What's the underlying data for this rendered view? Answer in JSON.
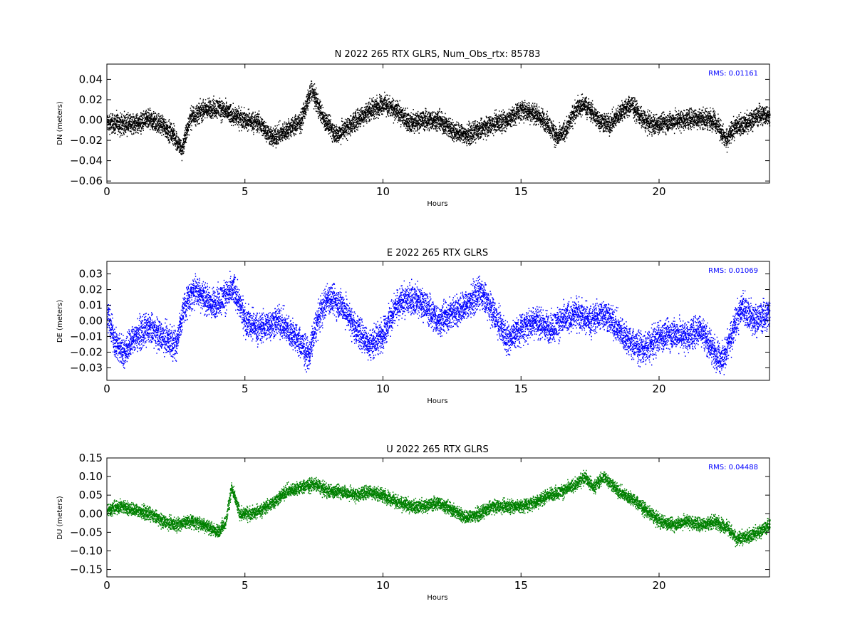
{
  "chart_data": [
    {
      "type": "scatter",
      "title": "N 2022 265 RTX  GLRS, Num_Obs_rtx: 85783",
      "xlabel": "Hours",
      "ylabel": "DN (meters)",
      "rms_label": "RMS:  0.01161",
      "color": "#000000",
      "rms_color": "#0000ff",
      "xlim": [
        0,
        24
      ],
      "ylim": [
        -0.062,
        0.055
      ],
      "xticks": [
        0,
        5,
        10,
        15,
        20
      ],
      "xtick_labels": [
        "0",
        "5",
        "10",
        "15",
        "20"
      ],
      "yticks": [
        -0.06,
        -0.04,
        -0.02,
        0.0,
        0.02,
        0.04
      ],
      "ytick_labels": [
        "−0.06",
        "−0.04",
        "−0.02",
        "0.00",
        "0.02",
        "0.04"
      ],
      "grid": false,
      "noise_half_width": 0.011,
      "envelope": {
        "x": [
          0,
          0.5,
          1,
          1.5,
          2,
          2.4,
          2.7,
          3,
          3.5,
          4,
          4.5,
          5,
          5.5,
          6,
          6.5,
          7,
          7.4,
          7.8,
          8.3,
          8.8,
          9.5,
          10,
          10.5,
          11,
          11.5,
          12,
          12.5,
          13,
          13.5,
          14,
          14.5,
          15,
          15.5,
          16,
          16.3,
          16.6,
          17,
          17.3,
          17.8,
          18.2,
          18.6,
          19,
          19.4,
          19.8,
          20.3,
          21,
          21.5,
          22,
          22.4,
          22.8,
          23.2,
          23.6,
          24
        ],
        "y": [
          -0.003,
          -0.004,
          -0.004,
          0.0,
          -0.005,
          -0.015,
          -0.03,
          0.002,
          0.01,
          0.012,
          0.005,
          0.0,
          -0.003,
          -0.018,
          -0.01,
          -0.002,
          0.03,
          0.003,
          -0.015,
          -0.005,
          0.01,
          0.016,
          0.008,
          -0.003,
          0.0,
          0.0,
          -0.01,
          -0.015,
          -0.01,
          -0.003,
          0.0,
          0.01,
          0.006,
          -0.005,
          -0.018,
          -0.01,
          0.012,
          0.015,
          0.0,
          -0.005,
          0.008,
          0.015,
          0.0,
          -0.005,
          -0.002,
          0.001,
          0.002,
          0.0,
          -0.02,
          -0.005,
          -0.003,
          0.005,
          0.005
        ]
      }
    },
    {
      "type": "scatter",
      "title": "E 2022 265 RTX  GLRS",
      "xlabel": "Hours",
      "ylabel": "DE (meters)",
      "rms_label": "RMS:  0.01069",
      "color": "#0000ff",
      "rms_color": "#0000ff",
      "xlim": [
        0,
        24
      ],
      "ylim": [
        -0.038,
        0.038
      ],
      "xticks": [
        0,
        5,
        10,
        15,
        20
      ],
      "xtick_labels": [
        "0",
        "5",
        "10",
        "15",
        "20"
      ],
      "yticks": [
        -0.03,
        -0.02,
        -0.01,
        0.0,
        0.01,
        0.02,
        0.03
      ],
      "ytick_labels": [
        "−0.03",
        "−0.02",
        "−0.01",
        "0.00",
        "0.01",
        "0.02",
        "0.03"
      ],
      "grid": false,
      "noise_half_width": 0.011,
      "envelope": {
        "x": [
          0,
          0.3,
          0.6,
          1,
          1.5,
          2,
          2.5,
          2.8,
          3.2,
          3.8,
          4.2,
          4.6,
          5,
          5.5,
          6.2,
          6.8,
          7.3,
          7.6,
          8,
          8.5,
          9,
          9.5,
          10,
          10.5,
          11,
          11.5,
          12,
          12.5,
          13,
          13.5,
          14,
          14.5,
          15,
          15.5,
          16,
          16.5,
          17,
          17.5,
          18,
          18.5,
          19,
          19.5,
          20,
          20.5,
          21,
          21.5,
          22,
          22.3,
          22.6,
          23,
          23.4,
          24
        ],
        "y": [
          0.005,
          -0.015,
          -0.02,
          -0.01,
          -0.005,
          -0.01,
          -0.015,
          0.01,
          0.02,
          0.01,
          0.015,
          0.02,
          0.0,
          -0.005,
          0.0,
          -0.01,
          -0.022,
          0.0,
          0.015,
          0.01,
          -0.005,
          -0.015,
          -0.008,
          0.01,
          0.015,
          0.01,
          0.0,
          0.005,
          0.01,
          0.018,
          0.005,
          -0.012,
          -0.005,
          0.0,
          -0.005,
          0.0,
          0.005,
          0.0,
          0.005,
          -0.005,
          -0.015,
          -0.018,
          -0.01,
          -0.008,
          -0.01,
          -0.005,
          -0.02,
          -0.025,
          -0.01,
          0.01,
          0.0,
          0.005
        ]
      }
    },
    {
      "type": "scatter",
      "title": "U 2022 265 RTX  GLRS",
      "xlabel": "Hours",
      "ylabel": "DU (meters)",
      "rms_label": "RMS:  0.04488",
      "color": "#008000",
      "rms_color": "#0000ff",
      "xlim": [
        0,
        24
      ],
      "ylim": [
        -0.17,
        0.15
      ],
      "xticks": [
        0,
        5,
        10,
        15,
        20
      ],
      "xtick_labels": [
        "0",
        "5",
        "10",
        "15",
        "20"
      ],
      "yticks": [
        -0.15,
        -0.1,
        -0.05,
        0.0,
        0.05,
        0.1,
        0.15
      ],
      "ytick_labels": [
        "−0.15",
        "−0.10",
        "−0.05",
        "0.00",
        "0.05",
        "0.10",
        "0.15"
      ],
      "grid": false,
      "noise_half_width": 0.02,
      "envelope": {
        "x": [
          0,
          0.5,
          1,
          1.5,
          2,
          2.5,
          3,
          3.5,
          4,
          4.3,
          4.5,
          4.8,
          5.2,
          5.6,
          6,
          6.5,
          7,
          7.5,
          8,
          8.5,
          9,
          9.5,
          10,
          10.5,
          11,
          11.5,
          12,
          12.5,
          13,
          13.5,
          14,
          14.5,
          15,
          15.5,
          16,
          16.5,
          17,
          17.3,
          17.6,
          18,
          18.5,
          19,
          19.5,
          20,
          20.5,
          21,
          21.5,
          22,
          22.5,
          22.8,
          23.2,
          23.6,
          24
        ],
        "y": [
          0.01,
          0.02,
          0.01,
          0.0,
          -0.02,
          -0.03,
          -0.02,
          -0.03,
          -0.05,
          -0.02,
          0.07,
          0.0,
          0.0,
          0.01,
          0.03,
          0.06,
          0.07,
          0.08,
          0.06,
          0.06,
          0.05,
          0.06,
          0.05,
          0.03,
          0.02,
          0.02,
          0.03,
          0.01,
          -0.01,
          0.0,
          0.02,
          0.02,
          0.02,
          0.03,
          0.05,
          0.06,
          0.08,
          0.1,
          0.07,
          0.1,
          0.06,
          0.04,
          0.01,
          -0.02,
          -0.03,
          -0.02,
          -0.03,
          -0.02,
          -0.04,
          -0.07,
          -0.06,
          -0.05,
          -0.03
        ]
      }
    }
  ]
}
